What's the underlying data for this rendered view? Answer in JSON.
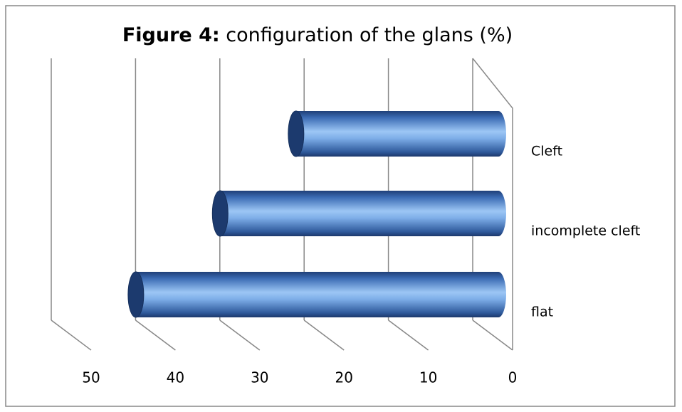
{
  "chart_data": {
    "type": "bar",
    "orientation": "horizontal",
    "title_prefix": "Figure 4:",
    "title": "configuration of the glans (%)",
    "categories": [
      "Cleft",
      "incomplete cleft",
      "flat"
    ],
    "values": [
      24,
      33,
      43
    ],
    "color": "#4a7fc8",
    "xlim": [
      0,
      50
    ],
    "xticks": [
      0,
      10,
      20,
      30,
      40,
      50
    ],
    "x_reversed": true,
    "grid": true
  }
}
